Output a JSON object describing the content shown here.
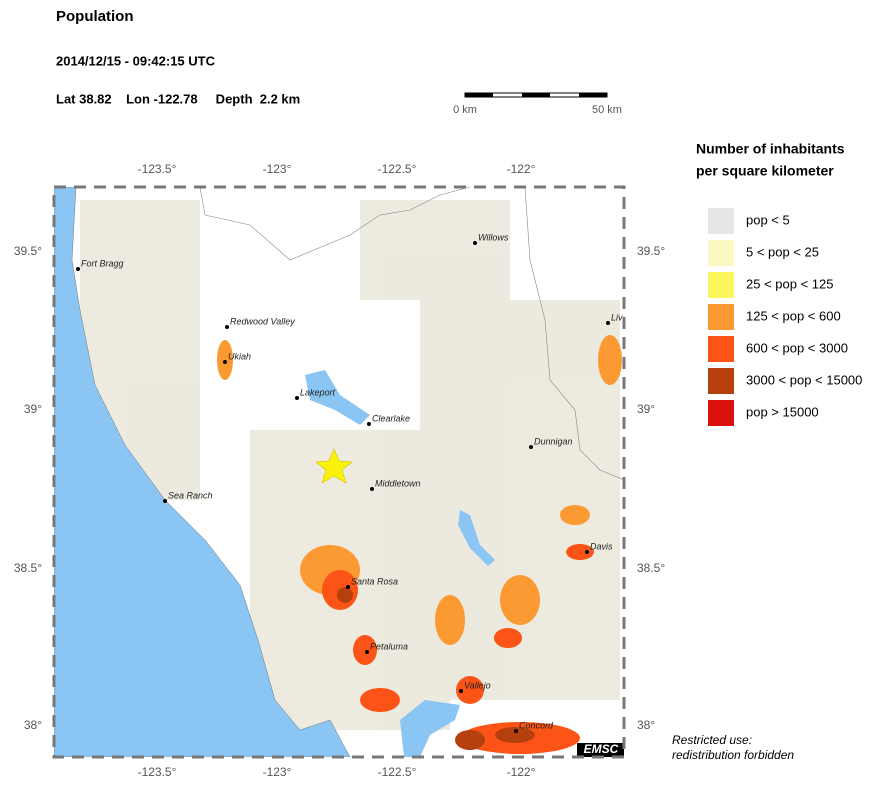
{
  "header": {
    "title": "Population",
    "datetime": "2014/12/15 - 09:42:15 UTC",
    "location": "Lat 38.82    Lon -122.78     Depth  2.2 km"
  },
  "scale": {
    "start": "0 km",
    "end": "50 km"
  },
  "map": {
    "lon_ticks": [
      "-123.5°",
      "-123°",
      "-122.5°",
      "-122°"
    ],
    "lat_ticks": [
      "39.5°",
      "39°",
      "38.5°",
      "38°"
    ],
    "cities": [
      "Fort Bragg",
      "Redwood Valley",
      "Ukiah",
      "Lakeport",
      "Clearlake",
      "Middletown",
      "Sea Ranch",
      "Santa Rosa",
      "Petaluma",
      "Vallejo",
      "Concord",
      "Willows",
      "Dunnigan",
      "Davis",
      "Liv"
    ],
    "badge": "EMSC"
  },
  "legend": {
    "title": [
      "Number of inhabitants",
      "per square kilometer"
    ],
    "items": [
      {
        "label": "pop < 5",
        "color": "#e6e6e6"
      },
      {
        "label": "5 < pop < 25",
        "color": "#fbf8c4"
      },
      {
        "label": "25 < pop < 125",
        "color": "#faf65c"
      },
      {
        "label": "125 < pop < 600",
        "color": "#fb9a32"
      },
      {
        "label": "600 < pop < 3000",
        "color": "#fb5416"
      },
      {
        "label": "3000 < pop < 15000",
        "color": "#b5400e"
      },
      {
        "label": "pop > 15000",
        "color": "#d9100c"
      }
    ]
  },
  "notice": [
    "Restricted use:",
    "redistribution forbidden"
  ]
}
